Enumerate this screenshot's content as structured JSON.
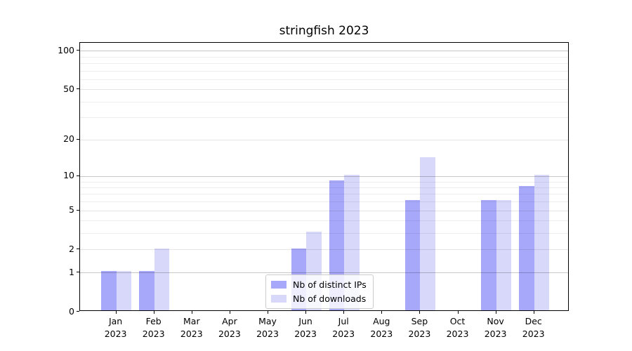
{
  "title": "stringfish 2023",
  "legend": {
    "items": [
      {
        "label": "Nb of distinct IPs",
        "color": "#a8a8fa"
      },
      {
        "label": "Nb of downloads",
        "color": "#d8d8fa"
      }
    ],
    "position": "lower center"
  },
  "chart_data": {
    "type": "bar",
    "title": "stringfish 2023",
    "categories": [
      "Jan 2023",
      "Feb 2023",
      "Mar 2023",
      "Apr 2023",
      "May 2023",
      "Jun 2023",
      "Jul 2023",
      "Aug 2023",
      "Sep 2023",
      "Oct 2023",
      "Nov 2023",
      "Dec 2023"
    ],
    "series": [
      {
        "name": "Nb of distinct IPs",
        "color": "#a8a8fa",
        "values": [
          1,
          1,
          0,
          0,
          0,
          2,
          9,
          0,
          6,
          0,
          6,
          8
        ]
      },
      {
        "name": "Nb of downloads",
        "color": "#d8d8fa",
        "values": [
          1,
          2,
          0,
          0,
          0,
          3,
          10,
          0,
          14,
          0,
          6,
          10
        ]
      }
    ],
    "xlabel": "",
    "ylabel": "",
    "yscale": "log1p",
    "ylim": [
      0,
      115
    ],
    "ytick_values": [
      0,
      1,
      2,
      5,
      10,
      20,
      50,
      100
    ],
    "ytick_labels": [
      "0",
      "1",
      "2",
      "5",
      "10",
      "20",
      "50",
      "100"
    ],
    "minor_gridline_values": [
      3,
      4,
      6,
      7,
      8,
      9,
      30,
      40,
      60,
      70,
      80,
      90
    ],
    "emphasized_gridline_values": [
      1,
      10,
      100
    ],
    "grid": true,
    "legend_position": "lower center"
  }
}
